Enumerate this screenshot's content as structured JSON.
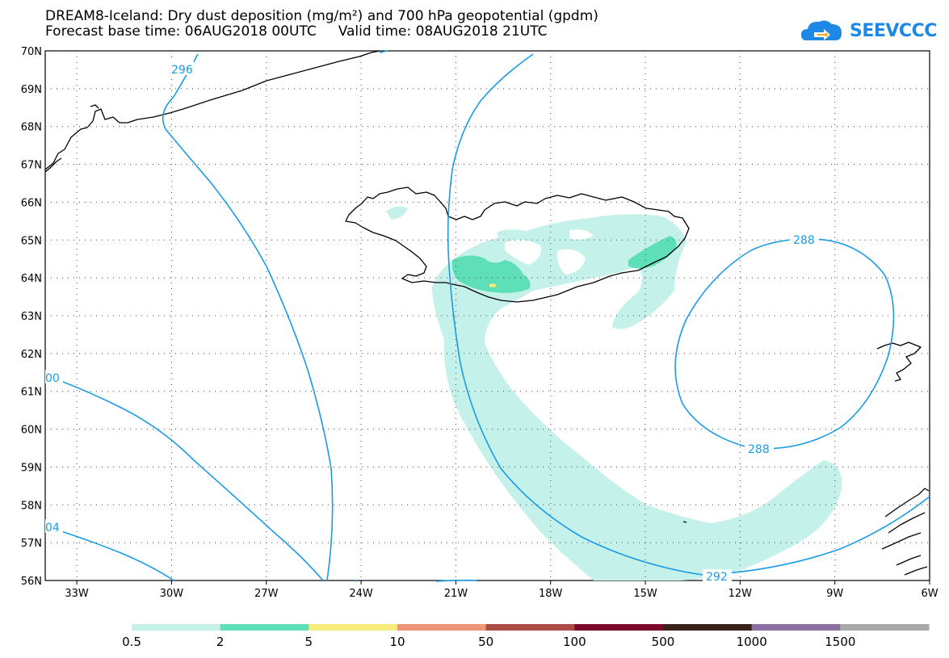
{
  "title_line1": "DREAM8-Iceland: Dry dust deposition (mg/m²) and 700 hPa geopotential (gpdm)",
  "title_line2": "Forecast base time: 06AUG2018 00UTC     Valid time: 08AUG2018 21UTC",
  "logo_text": "SEEVCCC",
  "lat_labels": [
    "70N",
    "69N",
    "68N",
    "67N",
    "66N",
    "65N",
    "64N",
    "63N",
    "62N",
    "61N",
    "60N",
    "59N",
    "58N",
    "57N",
    "56N"
  ],
  "lon_labels": [
    "33W",
    "30W",
    "27W",
    "24W",
    "21W",
    "18W",
    "15W",
    "12W",
    "9W",
    "6W"
  ],
  "contour_labels": [
    "296",
    "288",
    "288",
    "292",
    "00",
    "04"
  ],
  "legend": {
    "colors": [
      "#c4f1ea",
      "#5fdfb8",
      "#f7ec7a",
      "#ec9677",
      "#ab4d46",
      "#7a0a2c",
      "#392018",
      "#8c6fa2",
      "#a9a9a9"
    ],
    "labels": [
      "0.5",
      "2",
      "5",
      "10",
      "50",
      "100",
      "500",
      "1000",
      "1500"
    ]
  }
}
